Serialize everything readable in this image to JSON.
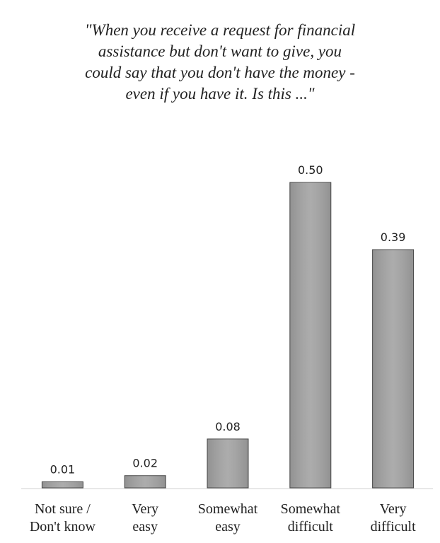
{
  "chart_data": {
    "type": "bar",
    "title": "\"When you receive a request for financial\nassistance but don't want to give, you\ncould say that you don't have the money -\neven if you have it. Is this ...\"",
    "categories": [
      "Not sure /\nDon't know",
      "Very\neasy",
      "Somewhat\neasy",
      "Somewhat\ndifficult",
      "Very\ndifficult"
    ],
    "values": [
      0.01,
      0.02,
      0.08,
      0.5,
      0.39
    ],
    "value_labels": [
      "0.01",
      "0.02",
      "0.08",
      "0.50",
      "0.39"
    ],
    "color": "#a5a5a5"
  }
}
